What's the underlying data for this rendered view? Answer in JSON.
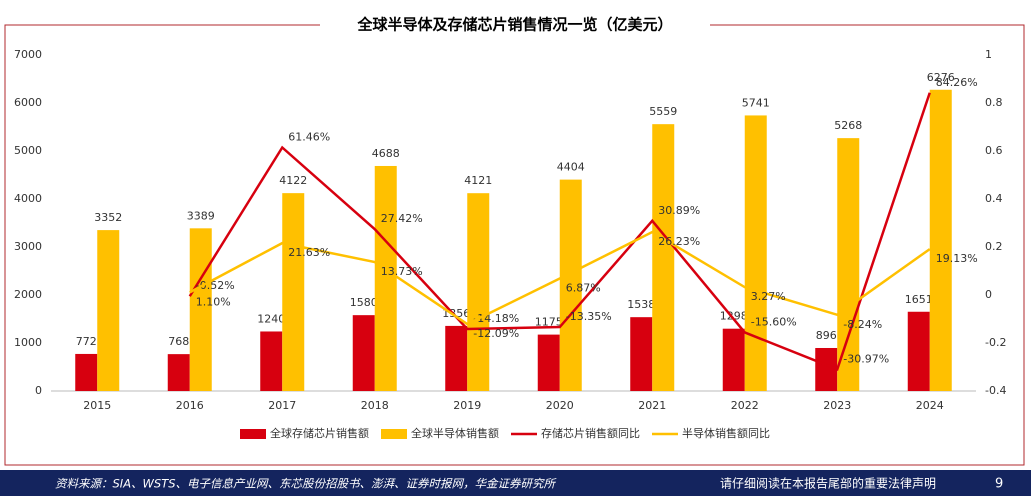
{
  "chart_data": {
    "type": "bar-line",
    "title": "全球半导体及存储芯片销售情况一览（亿美元）",
    "categories": [
      "2015",
      "2016",
      "2017",
      "2018",
      "2019",
      "2020",
      "2021",
      "2022",
      "2023",
      "2024"
    ],
    "series": [
      {
        "name": "全球存储芯片销售额",
        "type": "bar",
        "color": "#d7000f",
        "values": [
          772,
          768,
          1240,
          1580,
          1356,
          1175,
          1538,
          1298,
          896,
          1651
        ]
      },
      {
        "name": "全球半导体销售额",
        "type": "bar",
        "color": "#ffc000",
        "values": [
          3352,
          3389,
          4122,
          4688,
          4121,
          4404,
          5559,
          5741,
          5268,
          6276
        ]
      },
      {
        "name": "存储芯片销售额同比",
        "type": "line",
        "axis": "y2",
        "color": "#d7000f",
        "values": [
          null,
          -0.0052,
          0.6146,
          0.2742,
          -0.1418,
          -0.1335,
          0.3089,
          -0.156,
          -0.3097,
          0.8426
        ],
        "value_labels": [
          null,
          "-0.52%",
          "61.46%",
          "27.42%",
          "-14.18%",
          "-13.35%",
          "30.89%",
          "-15.60%",
          "-30.97%",
          "84.26%"
        ]
      },
      {
        "name": "半导体销售额同比",
        "type": "line",
        "axis": "y2",
        "color": "#ffc000",
        "values": [
          null,
          0.011,
          0.2163,
          0.1373,
          -0.1209,
          0.0687,
          0.2623,
          0.0327,
          -0.0824,
          0.1913
        ],
        "value_labels": [
          null,
          "1.10%",
          "21.63%",
          "13.73%",
          "-12.09%",
          "6.87%",
          "26.23%",
          "3.27%",
          "-8.24%",
          "19.13%"
        ]
      }
    ],
    "ylim": [
      0,
      7000
    ],
    "yticks": [
      0,
      1000,
      2000,
      3000,
      4000,
      5000,
      6000,
      7000
    ],
    "y2lim": [
      -0.4,
      1
    ],
    "y2ticks": [
      -0.4,
      -0.2,
      0,
      0.2,
      0.4,
      0.6,
      0.8,
      1
    ],
    "grid": false,
    "legend": "bottom"
  },
  "footer": {
    "source": "资料来源：SIA、WSTS、电子信息产业网、东芯股份招股书、澎湃、证券时报网，华金证券研究所",
    "disclaimer": "请仔细阅读在本报告尾部的重要法律声明",
    "page": "9"
  }
}
